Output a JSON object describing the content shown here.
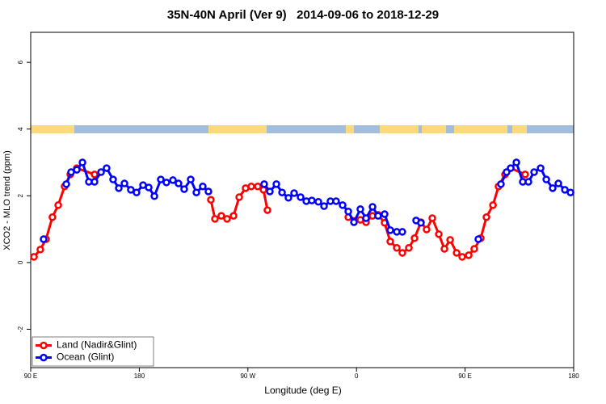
{
  "chart_data": {
    "type": "line",
    "title": "35N-40N April (Ver 9)   2014-09-06 to 2018-12-29",
    "x_label": "Longitude (deg E)",
    "y_label": "XCO2 - MLO trend (ppm)",
    "xlim": [
      90,
      540
    ],
    "ylim": [
      -3.15,
      6.9
    ],
    "xticks": [
      {
        "value": 90,
        "label": "90 E"
      },
      {
        "value": 180,
        "label": "180"
      },
      {
        "value": 270,
        "label": "90 W"
      },
      {
        "value": 360,
        "label": "0"
      },
      {
        "value": 450,
        "label": "90 E"
      },
      {
        "value": 540,
        "label": "180"
      }
    ],
    "yticks": [
      -2,
      0,
      2,
      4,
      6
    ],
    "legend": "bottom left",
    "series": [
      {
        "name": "Land (Nadir&Glint)",
        "color": "#ff0000",
        "x": [
          92.7,
          98,
          102.7,
          108,
          112.8,
          118.1,
          122.8,
          128.2,
          142.9,
          null,
          239.3,
          242.7,
          248,
          252.7,
          258.1,
          262.8,
          268.1,
          272.8,
          278.2,
          282.9,
          286.2,
          null,
          353.2,
          363.2,
          367.9,
          373.3,
          377.9,
          383.3,
          388,
          393.4,
          398,
          403.4,
          408.1,
          413.4,
          418.1,
          422.8,
          428.2,
          432.9,
          437.6,
          443,
          447.6,
          453,
          457.6,
          463,
          467.7,
          473.1,
          477.7,
          483.1,
          487.8,
          499.8
        ],
        "values": [
          0.17,
          0.39,
          0.7,
          1.36,
          1.72,
          2.28,
          2.64,
          2.83,
          2.64,
          null,
          1.88,
          1.31,
          1.4,
          1.31,
          1.4,
          1.96,
          2.23,
          2.28,
          2.28,
          2.18,
          1.57,
          null,
          1.36,
          1.28,
          1.21,
          1.4,
          1.43,
          1.19,
          0.63,
          0.44,
          0.29,
          0.44,
          0.73,
          1.21,
          0.99,
          1.33,
          0.85,
          0.41,
          0.68,
          0.29,
          0.17,
          0.22,
          0.41,
          0.73,
          1.36,
          1.72,
          2.28,
          2.64,
          2.83,
          2.64
        ]
      },
      {
        "name": "Ocean (Glint)",
        "color": "#0000ff",
        "x": [
          100.7,
          null,
          119.5,
          123.5,
          128.2,
          132.9,
          138.2,
          142.9,
          148.3,
          152.9,
          158.3,
          163,
          167.7,
          173,
          177.7,
          183.1,
          187.8,
          192.5,
          197.8,
          202.5,
          207.9,
          212.5,
          217.2,
          222.6,
          227.3,
          232.6,
          237.3,
          null,
          283.5,
          288.2,
          293.6,
          298.3,
          303.6,
          308.3,
          313.7,
          318.4,
          323,
          328.4,
          333.1,
          338.4,
          343.1,
          348.5,
          353.2,
          357.9,
          363.2,
          367.9,
          373.3,
          377.9,
          383.3,
          388,
          393.4,
          398,
          null,
          409.4,
          413.4,
          null,
          461,
          null,
          479.7,
          484.4,
          487.8,
          492.5,
          497.8,
          502.5,
          507.2,
          512.6,
          517.3,
          522.6,
          527.3,
          532.7,
          537.4
        ],
        "values": [
          0.7,
          null,
          2.35,
          2.71,
          2.78,
          3.0,
          2.42,
          2.42,
          2.71,
          2.83,
          2.49,
          2.23,
          2.37,
          2.18,
          2.1,
          2.32,
          2.25,
          1.99,
          2.49,
          2.4,
          2.47,
          2.37,
          2.2,
          2.49,
          2.1,
          2.28,
          2.13,
          null,
          2.35,
          2.13,
          2.35,
          2.1,
          1.94,
          2.08,
          1.96,
          1.84,
          1.86,
          1.82,
          1.69,
          1.84,
          1.84,
          1.72,
          1.53,
          1.21,
          1.6,
          1.33,
          1.67,
          1.4,
          1.45,
          0.97,
          0.92,
          0.92,
          null,
          1.26,
          1.19,
          null,
          0.7,
          null,
          2.35,
          2.71,
          2.83,
          3.0,
          2.42,
          2.42,
          2.71,
          2.83,
          2.49,
          2.23,
          2.37,
          2.18,
          2.1
        ]
      }
    ]
  }
}
